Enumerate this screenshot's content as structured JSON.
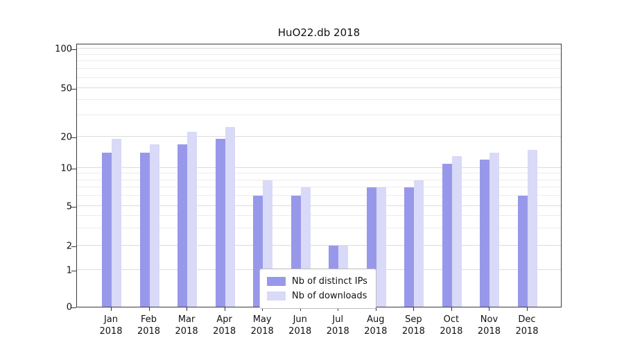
{
  "chart_data": {
    "type": "bar",
    "title": "HuO22.db 2018",
    "categories": [
      "Jan",
      "Feb",
      "Mar",
      "Apr",
      "May",
      "Jun",
      "Jul",
      "Aug",
      "Sep",
      "Oct",
      "Nov",
      "Dec"
    ],
    "category_year": "2018",
    "series": [
      {
        "name": "Nb of distinct IPs",
        "color": "#9898ea",
        "values": [
          14,
          14,
          17,
          19,
          6,
          6,
          2,
          7,
          7,
          11,
          12,
          6
        ]
      },
      {
        "name": "Nb of downloads",
        "color": "#d9d9f8",
        "values": [
          19,
          17,
          22,
          24,
          8,
          7,
          2,
          7,
          8,
          13,
          14,
          15
        ]
      }
    ],
    "xlabel": "",
    "ylabel": "",
    "yticks": [
      0,
      1,
      2,
      5,
      10,
      20,
      50,
      100
    ],
    "minor_gridlines": [
      3,
      4,
      6,
      7,
      8,
      9,
      30,
      40,
      60,
      70,
      80,
      90
    ],
    "ylim": [
      0,
      100
    ],
    "yscale": "symlog",
    "grid": "horizontal",
    "legend_position": "lower center inside plot"
  }
}
